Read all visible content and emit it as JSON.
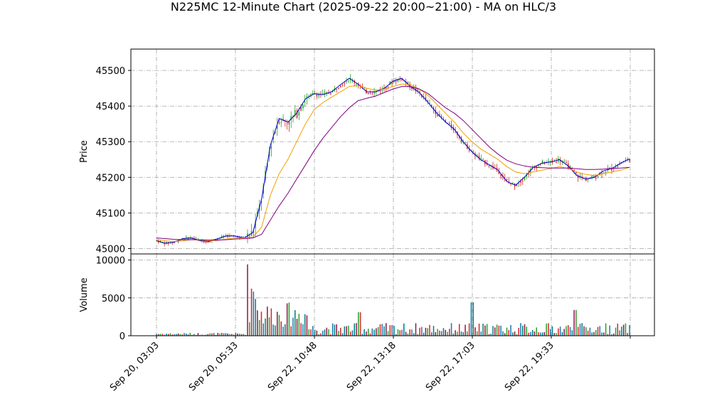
{
  "chart_data": {
    "type": "candlestick",
    "title": "N225MC 12-Minute Chart (2025-09-22 20:00~21:00) - MA on HLC/3",
    "price_panel": {
      "ylabel": "Price",
      "ylim": [
        44985,
        45560
      ],
      "yticks": [
        45000,
        45100,
        45200,
        45300,
        45400,
        45500
      ],
      "grid": true,
      "series": [
        {
          "role": "short_ma",
          "color": "#0000cc",
          "values": [
            45022,
            45015,
            45018,
            45028,
            45030,
            45022,
            45020,
            45028,
            45036,
            45035,
            45030,
            45045,
            45140,
            45290,
            45365,
            45355,
            45380,
            45420,
            45435,
            45432,
            45440,
            45460,
            45478,
            45462,
            45440,
            45440,
            45450,
            45470,
            45478,
            45455,
            45438,
            45410,
            45380,
            45355,
            45335,
            45300,
            45272,
            45250,
            45235,
            45220,
            45188,
            45178,
            45200,
            45228,
            45240,
            45243,
            45250,
            45232,
            45205,
            45195,
            45200,
            45218,
            45225,
            45240,
            45252
          ]
        },
        {
          "role": "mid_ma",
          "color": "#f0a000",
          "values": [
            45025,
            45022,
            45020,
            45022,
            45025,
            45024,
            45022,
            45023,
            45027,
            45030,
            45030,
            45032,
            45060,
            45150,
            45210,
            45250,
            45300,
            45350,
            45390,
            45410,
            45425,
            45440,
            45455,
            45458,
            45450,
            45445,
            45448,
            45455,
            45462,
            45460,
            45448,
            45430,
            45405,
            45380,
            45355,
            45325,
            45300,
            45280,
            45265,
            45250,
            45230,
            45215,
            45210,
            45215,
            45220,
            45225,
            45230,
            45225,
            45215,
            45208,
            45205,
            45210,
            45215,
            45220,
            45228
          ]
        },
        {
          "role": "long_ma",
          "color": "#800080",
          "values": [
            45030,
            45028,
            45026,
            45025,
            45025,
            45025,
            45024,
            45024,
            45025,
            45027,
            45028,
            45030,
            45040,
            45080,
            45120,
            45155,
            45195,
            45235,
            45275,
            45310,
            45340,
            45370,
            45395,
            45415,
            45422,
            45428,
            45438,
            45448,
            45455,
            45455,
            45448,
            45435,
            45415,
            45395,
            45380,
            45360,
            45335,
            45310,
            45285,
            45265,
            45248,
            45238,
            45232,
            45228,
            45227,
            45226,
            45226,
            45226,
            45224,
            45222,
            45222,
            45223,
            45225,
            45226,
            45228
          ]
        }
      ],
      "candle_colors": {
        "up": "#2ca02c",
        "down": "#d62728"
      }
    },
    "volume_panel": {
      "ylabel": "Volume",
      "ylim": [
        0,
        10800
      ],
      "yticks": [
        0,
        5000,
        10000
      ],
      "grid": true,
      "bar_colors": [
        "#008080",
        "#8b1a4a",
        "#2ca02c",
        "#d62728",
        "#1f77b4"
      ]
    },
    "x_tick_labels": [
      "Sep 20, 03:03",
      "Sep 20, 05:33",
      "Sep 22, 10:48",
      "Sep 22, 13:18",
      "Sep 22, 17:03",
      "Sep 22, 19:33"
    ]
  }
}
